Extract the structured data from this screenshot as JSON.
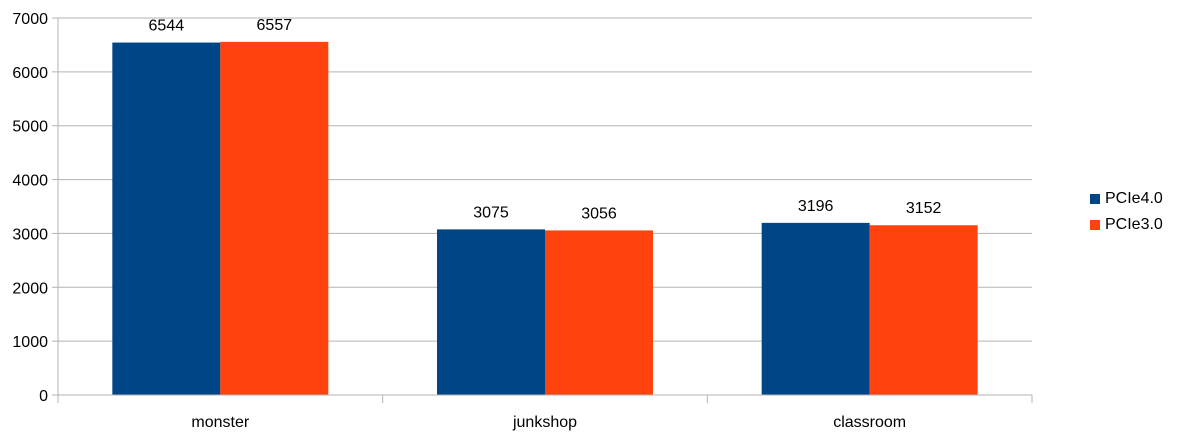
{
  "chart_data": {
    "type": "bar",
    "categories": [
      "monster",
      "junkshop",
      "classroom"
    ],
    "series": [
      {
        "name": "PCIe4.0",
        "color": "#004586",
        "values": [
          6544,
          3075,
          3196
        ]
      },
      {
        "name": "PCIe3.0",
        "color": "#ff420e",
        "values": [
          6557,
          3056,
          3152
        ]
      }
    ],
    "ylim": [
      0,
      7000
    ],
    "yticks": [
      0,
      1000,
      2000,
      3000,
      4000,
      5000,
      6000,
      7000
    ],
    "ytick_labels": [
      "0",
      "1000",
      "2000",
      "3000",
      "4000",
      "5000",
      "6000",
      "7000"
    ],
    "grid": true,
    "legend_position": "right",
    "data_labels": true
  }
}
